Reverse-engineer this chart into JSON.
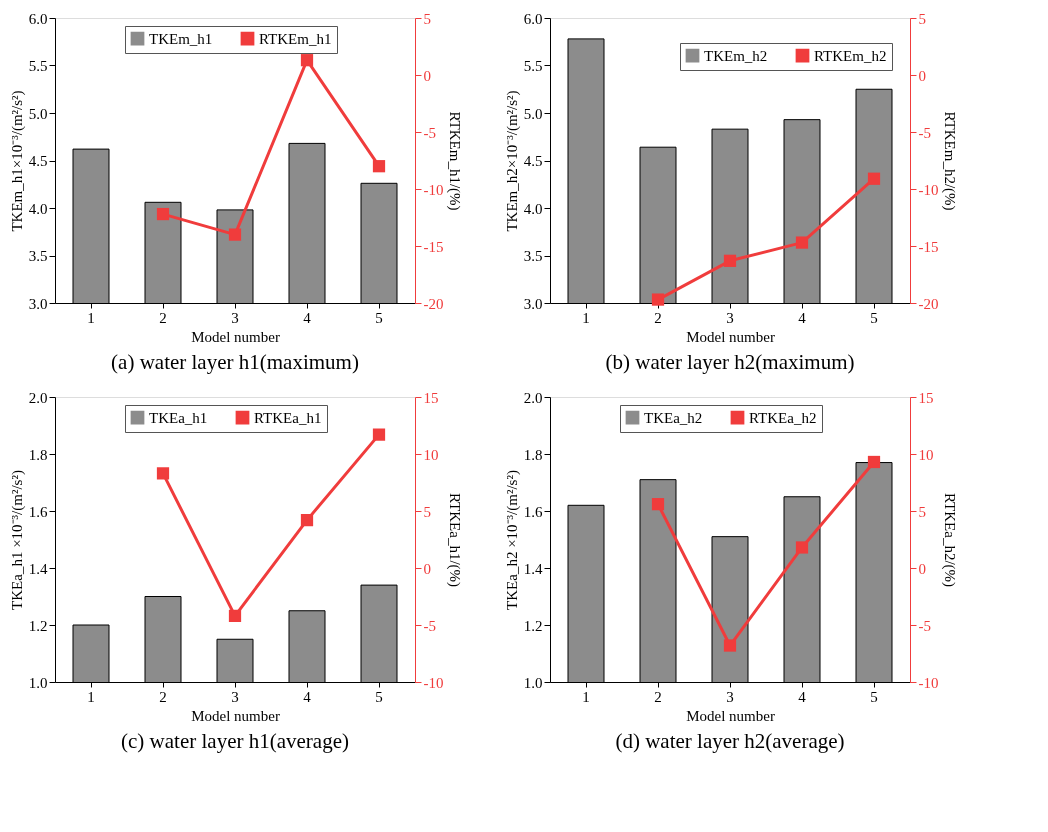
{
  "chart_data": [
    {
      "type": "bar",
      "title": "(a) water layer h1(maximum)",
      "xlabel": "Model number",
      "ylabel": "TKEm_h1×10⁻³/(m²/s²)",
      "y2label": "RTKEm_h1/(%)",
      "categories": [
        "1",
        "2",
        "3",
        "4",
        "5"
      ],
      "series": [
        {
          "name": "TKEm_h1",
          "color": "#8c8c8c",
          "values": [
            4.62,
            4.06,
            3.98,
            4.68,
            4.26
          ]
        },
        {
          "name": "RTKEm_h1",
          "type": "line",
          "axis": "y2",
          "color": "#f03c3c",
          "values": [
            null,
            -12.2,
            -14.0,
            1.3,
            -8.0
          ]
        }
      ],
      "ylim": [
        3,
        6
      ],
      "yticks": [
        {
          "value": 3,
          "label": "3.0"
        },
        3.5,
        {
          "value": 4,
          "label": "4.0"
        },
        4.5,
        {
          "value": 5,
          "label": "5.0"
        },
        5.5,
        {
          "value": 6,
          "label": "6.0"
        }
      ],
      "y2lim": [
        -20,
        5
      ],
      "y2ticks": [
        -20,
        -15,
        -10,
        -5,
        0,
        5
      ],
      "legend": "top",
      "marker": "square",
      "line_style": "solid",
      "grid": false
    },
    {
      "type": "bar",
      "title": "(b) water layer h2(maximum)",
      "xlabel": "Model number",
      "ylabel": "TKEm_h2×10⁻³/(m²/s²)",
      "y2label": "RTKEm_h2/(%)",
      "categories": [
        "1",
        "2",
        "3",
        "4",
        "5"
      ],
      "series": [
        {
          "name": "TKEm_h2",
          "color": "#8c8c8c",
          "values": [
            5.78,
            4.64,
            4.83,
            4.93,
            5.25
          ]
        },
        {
          "name": "RTKEm_h2",
          "type": "line",
          "axis": "y2",
          "color": "#f03c3c",
          "values": [
            null,
            -19.7,
            -16.3,
            -14.7,
            -9.1
          ]
        }
      ],
      "ylim": [
        3,
        6
      ],
      "yticks": [
        {
          "value": 3,
          "label": "3.0"
        },
        3.5,
        {
          "value": 4,
          "label": "4.0"
        },
        4.5,
        {
          "value": 5,
          "label": "5.0"
        },
        5.5,
        {
          "value": 6,
          "label": "6.0"
        }
      ],
      "y2lim": [
        -20,
        5
      ],
      "y2ticks": [
        -20,
        -15,
        -10,
        -5,
        0,
        5
      ],
      "legend": "top right",
      "marker": "square",
      "line_style": "solid",
      "grid": false
    },
    {
      "type": "bar",
      "title": "(c) water layer h1(average)",
      "xlabel": "Model number",
      "ylabel": "TKEa_h1 ×10⁻³/(m²/s²)",
      "y2label": "RTKEa_h1/(%)",
      "categories": [
        "1",
        "2",
        "3",
        "4",
        "5"
      ],
      "series": [
        {
          "name": "TKEa_h1",
          "color": "#8c8c8c",
          "values": [
            1.2,
            1.3,
            1.15,
            1.25,
            1.34
          ]
        },
        {
          "name": "RTKEa_h1",
          "type": "line",
          "axis": "y2",
          "color": "#f03c3c",
          "values": [
            null,
            8.3,
            -4.2,
            4.2,
            11.7
          ]
        }
      ],
      "ylim": [
        1,
        2
      ],
      "yticks": [
        {
          "value": 1,
          "label": "1.0"
        },
        1.2,
        1.4,
        1.6,
        1.8,
        {
          "value": 2,
          "label": "2.0"
        }
      ],
      "y2lim": [
        -10,
        15
      ],
      "y2ticks": [
        -10,
        -5,
        0,
        5,
        10,
        15
      ],
      "legend": "top",
      "marker": "square",
      "line_style": "solid",
      "grid": false
    },
    {
      "type": "bar",
      "title": "(d) water layer h2(average)",
      "xlabel": "Model number",
      "ylabel": "TKEa_h2 ×10⁻³/(m²/s²)",
      "y2label": "RTKEa_h2/(%)",
      "categories": [
        "1",
        "2",
        "3",
        "4",
        "5"
      ],
      "series": [
        {
          "name": "TKEa_h2",
          "color": "#8c8c8c",
          "values": [
            1.62,
            1.71,
            1.51,
            1.65,
            1.77
          ]
        },
        {
          "name": "RTKEa_h2",
          "type": "line",
          "axis": "y2",
          "color": "#f03c3c",
          "values": [
            null,
            5.6,
            -6.8,
            1.8,
            9.3
          ]
        }
      ],
      "ylim": [
        1,
        2
      ],
      "yticks": [
        {
          "value": 1,
          "label": "1.0"
        },
        1.2,
        1.4,
        1.6,
        1.8,
        {
          "value": 2,
          "label": "2.0"
        }
      ],
      "y2lim": [
        -10,
        15
      ],
      "y2ticks": [
        -10,
        -5,
        0,
        5,
        10,
        15
      ],
      "legend": "top",
      "marker": "square",
      "line_style": "solid",
      "grid": false
    }
  ]
}
